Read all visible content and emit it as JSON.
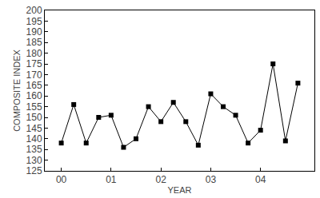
{
  "chart_data": {
    "type": "line",
    "x_label": "YEAR",
    "y_label": "COMPOSITE INDEX",
    "categories": [
      "00",
      null,
      null,
      null,
      "01",
      null,
      null,
      null,
      "02",
      null,
      null,
      null,
      "03",
      null,
      null,
      null,
      "04",
      null,
      null,
      null
    ],
    "values": [
      138,
      156,
      138,
      150,
      151,
      136,
      140,
      155,
      148,
      157,
      148,
      137,
      161,
      155,
      151,
      138,
      144,
      175,
      139,
      166
    ],
    "color": "#000000",
    "marker": "square",
    "line_style": "solid",
    "ylim": [
      125,
      200
    ],
    "yticks": [
      125,
      130,
      135,
      140,
      145,
      150,
      155,
      160,
      165,
      170,
      175,
      180,
      185,
      190,
      195,
      200
    ],
    "grid": false
  }
}
